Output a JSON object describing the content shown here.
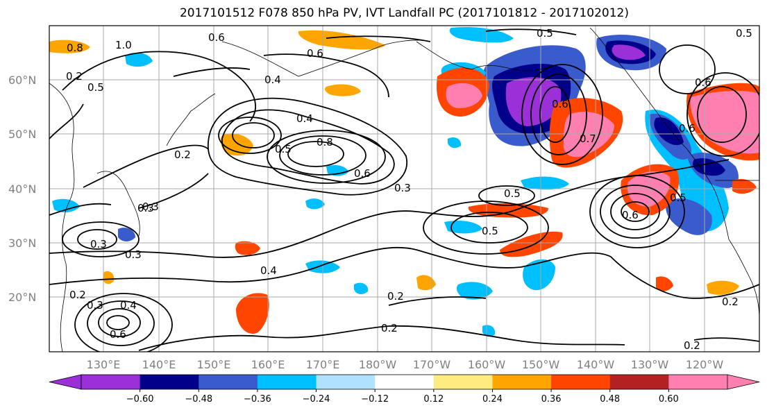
{
  "title": "2017101512 F078 850 hPa PV, IVT Landfall PC (2017101812 - 2017102012)",
  "lat_labels": [
    "60°N",
    "50°N",
    "40°N",
    "30°N",
    "20°N"
  ],
  "lon_labels": [
    "130°E",
    "140°E",
    "150°E",
    "160°E",
    "170°E",
    "180°W",
    "170°W",
    "160°W",
    "150°W",
    "140°W",
    "130°W",
    "120°W"
  ],
  "colorbar": {
    "ticks": [
      "−0.60",
      "−0.48",
      "−0.36",
      "−0.24",
      "−0.12",
      "0.12",
      "0.24",
      "0.36",
      "0.48",
      "0.60"
    ],
    "colors": [
      "#9b30d9",
      "#00008b",
      "#3a5bcc",
      "#00bfff",
      "#b0e2ff",
      "#ffffff",
      "#ffeb80",
      "#ffa500",
      "#ff4500",
      "#b22222",
      "#ff80b0"
    ]
  },
  "contour_labels": [
    "0.8",
    "1.0",
    "0.6",
    "0.6",
    "0.5",
    "0.5",
    "0.4",
    "0.2",
    "0.5",
    "0.4",
    "0.8",
    "0.5",
    "0.6",
    "0.3",
    "0.5",
    "0.5",
    "0.3",
    "0.3",
    "0.4",
    "0.3",
    "0.2",
    "0.4",
    "0.3",
    "0.6",
    "0.2",
    "0.2",
    "0.2",
    "0.6",
    "0.7",
    "0.6",
    "0.6",
    "0.6",
    "0.5",
    "0.2",
    "0.2",
    "0.3"
  ]
}
